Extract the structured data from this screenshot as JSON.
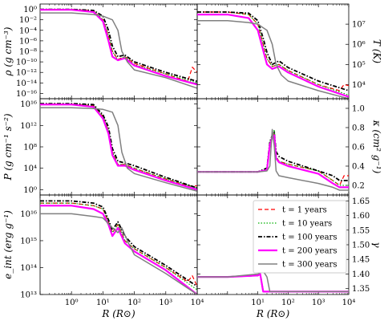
{
  "chart_data": [
    {
      "type": "line",
      "panel": "top-left",
      "ylabel": "ρ (g cm⁻³)",
      "yscale": "log",
      "xscale": "log",
      "xlim": [
        0.1,
        10000
      ],
      "ylim": [
        1e-17,
        10
      ],
      "yticks": [
        "10⁰",
        "10⁻²",
        "10⁻⁴",
        "10⁻⁶",
        "10⁻⁸",
        "10⁻¹⁰",
        "10⁻¹²",
        "10⁻¹⁴",
        "10⁻¹⁶"
      ],
      "series": [
        {
          "name": "t = 1 years",
          "x": [
            0.1,
            1,
            5,
            10,
            15,
            20,
            30,
            50,
            100,
            1000,
            5000,
            7000,
            10000
          ],
          "y": [
            1,
            1,
            0.5,
            0.01,
            1e-05,
            1e-08,
            3e-10,
            1e-09,
            5e-11,
            5e-13,
            2e-14,
            1e-11,
            1e-12
          ]
        },
        {
          "name": "t = 10 years",
          "x": [
            0.1,
            1,
            5,
            10,
            15,
            20,
            30,
            50,
            100,
            1000,
            10000
          ],
          "y": [
            1,
            1,
            0.5,
            0.01,
            1e-05,
            1e-08,
            2e-10,
            1e-09,
            3e-11,
            5e-13,
            1e-14
          ]
        },
        {
          "name": "t = 100 years",
          "x": [
            0.1,
            1,
            5,
            10,
            15,
            20,
            30,
            50,
            100,
            1000,
            10000
          ],
          "y": [
            1,
            1,
            0.6,
            0.05,
            0.0001,
            1e-07,
            1e-09,
            2e-09,
            1e-10,
            1e-12,
            2e-14
          ]
        },
        {
          "name": "t = 200 years",
          "x": [
            0.1,
            1,
            5,
            10,
            15,
            20,
            30,
            50,
            100,
            1000,
            10000
          ],
          "y": [
            0.8,
            0.8,
            0.3,
            0.005,
            1e-06,
            1e-09,
            2e-10,
            5e-10,
            2e-11,
            2e-13,
            5e-15
          ]
        },
        {
          "name": "t = 300 years",
          "x": [
            0.1,
            1,
            5,
            10,
            20,
            30,
            40,
            60,
            100,
            1000,
            10000
          ],
          "y": [
            0.2,
            0.2,
            0.1,
            0.05,
            0.01,
            0.0001,
            1e-08,
            1e-10,
            3e-12,
            1e-13,
            1e-15
          ]
        }
      ]
    },
    {
      "type": "line",
      "panel": "top-right",
      "ylabel": "T (K)",
      "yscale": "log",
      "xscale": "log",
      "xlim": [
        0.1,
        10000
      ],
      "ylim": [
        2000,
        100000000
      ],
      "yticks": [
        "10⁷",
        "10⁶",
        "10⁵",
        "10⁴"
      ],
      "series": [
        {
          "name": "t = 1 years",
          "x": [
            0.1,
            1,
            5,
            10,
            15,
            20,
            30,
            50,
            100,
            1000,
            5000,
            7000,
            10000
          ],
          "y": [
            40000000.0,
            40000000.0,
            30000000.0,
            10000000.0,
            1000000.0,
            200000.0,
            80000.0,
            100000.0,
            50000.0,
            10000.0,
            5000,
            10000.0,
            9000
          ]
        },
        {
          "name": "t = 10 years",
          "x": [
            0.1,
            1,
            5,
            10,
            15,
            20,
            30,
            50,
            100,
            1000,
            10000
          ],
          "y": [
            40000000.0,
            40000000.0,
            30000000.0,
            10000000.0,
            1000000.0,
            200000.0,
            80000.0,
            100000.0,
            50000.0,
            10000.0,
            3000
          ]
        },
        {
          "name": "t = 100 years",
          "x": [
            0.1,
            1,
            5,
            10,
            15,
            20,
            30,
            50,
            100,
            1000,
            10000
          ],
          "y": [
            40000000.0,
            40000000.0,
            35000000.0,
            15000000.0,
            2000000.0,
            400000.0,
            100000.0,
            150000.0,
            70000.0,
            15000.0,
            5000
          ]
        },
        {
          "name": "t = 200 years",
          "x": [
            0.1,
            1,
            5,
            10,
            15,
            20,
            30,
            50,
            100,
            1000,
            10000
          ],
          "y": [
            30000000.0,
            30000000.0,
            20000000.0,
            5000000.0,
            500000.0,
            100000.0,
            60000.0,
            80000.0,
            40000.0,
            8000,
            2500
          ]
        },
        {
          "name": "t = 300 years",
          "x": [
            0.1,
            1,
            5,
            10,
            20,
            30,
            40,
            60,
            100,
            1000,
            10000
          ],
          "y": [
            15000000.0,
            15000000.0,
            12000000.0,
            10000000.0,
            5000000.0,
            1000000.0,
            100000.0,
            30000.0,
            15000.0,
            5000,
            2000
          ]
        }
      ]
    },
    {
      "type": "line",
      "panel": "middle-left",
      "ylabel": "P (g cm⁻¹ s⁻²)",
      "yscale": "log",
      "xscale": "log",
      "xlim": [
        0.1,
        10000
      ],
      "ylim": [
        0.1,
        1e+17
      ],
      "yticks": [
        "10¹⁶",
        "10¹²",
        "10⁸",
        "10⁴",
        "10⁰"
      ],
      "series": [
        {
          "name": "t = 1 years",
          "x": [
            0.1,
            1,
            5,
            10,
            15,
            20,
            30,
            50,
            100,
            1000,
            5000,
            7000,
            10000
          ],
          "y": [
            1e+16,
            1e+16,
            5000000000000000.0,
            50000000000000.0,
            100000000000.0,
            10000000.0,
            50000.0,
            50000.0,
            10000.0,
            100,
            5,
            5,
            5
          ]
        },
        {
          "name": "t = 10 years",
          "x": [
            0.1,
            1,
            5,
            10,
            15,
            20,
            30,
            50,
            100,
            1000,
            10000
          ],
          "y": [
            1e+16,
            1e+16,
            5000000000000000.0,
            50000000000000.0,
            100000000000.0,
            10000000.0,
            50000.0,
            50000.0,
            10000.0,
            100,
            2
          ]
        },
        {
          "name": "t = 100 years",
          "x": [
            0.1,
            1,
            5,
            10,
            15,
            20,
            30,
            50,
            100,
            1000,
            10000
          ],
          "y": [
            1.2e+16,
            1.2e+16,
            8000000000000000.0,
            100000000000000.0,
            500000000000.0,
            50000000.0,
            200000.0,
            100000.0,
            30000.0,
            200,
            2
          ]
        },
        {
          "name": "t = 200 years",
          "x": [
            0.1,
            1,
            5,
            10,
            15,
            20,
            30,
            50,
            100,
            1000,
            10000
          ],
          "y": [
            8000000000000000.0,
            8000000000000000.0,
            3000000000000000.0,
            20000000000000.0,
            30000000000.0,
            3000000.0,
            30000.0,
            30000.0,
            5000,
            50,
            1
          ]
        },
        {
          "name": "t = 300 years",
          "x": [
            0.1,
            1,
            5,
            10,
            20,
            30,
            40,
            60,
            100,
            1000,
            10000
          ],
          "y": [
            2000000000000000.0,
            2000000000000000.0,
            1500000000000000.0,
            1000000000000000.0,
            300000000000000.0,
            1000000000000.0,
            10000000.0,
            10000.0,
            1000,
            20,
            0.5
          ]
        }
      ]
    },
    {
      "type": "line",
      "panel": "middle-right",
      "ylabel": "κ (cm² g⁻¹)",
      "yscale": "linear",
      "xscale": "log",
      "xlim": [
        0.1,
        10000
      ],
      "ylim": [
        0.1,
        1.1
      ],
      "yticks": [
        "1.0",
        "0.8",
        "0.6",
        "0.4",
        "0.2"
      ],
      "series": [
        {
          "name": "t = 1 years",
          "x": [
            0.1,
            1,
            10,
            20,
            25,
            30,
            35,
            40,
            50,
            100,
            1000,
            3000,
            5000,
            7000,
            10000
          ],
          "y": [
            0.34,
            0.34,
            0.34,
            0.36,
            0.6,
            0.7,
            0.75,
            0.5,
            0.45,
            0.42,
            0.35,
            0.25,
            0.2,
            0.3,
            0.3
          ]
        },
        {
          "name": "t = 10 years",
          "x": [
            0.1,
            1,
            10,
            20,
            25,
            30,
            35,
            40,
            50,
            100,
            1000,
            3000,
            5000,
            10000
          ],
          "y": [
            0.34,
            0.34,
            0.34,
            0.36,
            0.65,
            0.7,
            0.78,
            0.5,
            0.45,
            0.42,
            0.35,
            0.25,
            0.2,
            0.2
          ]
        },
        {
          "name": "t = 100 years",
          "x": [
            0.1,
            1,
            10,
            20,
            25,
            30,
            35,
            40,
            50,
            100,
            1000,
            3000,
            5000,
            10000
          ],
          "y": [
            0.34,
            0.34,
            0.34,
            0.38,
            0.65,
            0.72,
            0.75,
            0.55,
            0.5,
            0.45,
            0.35,
            0.3,
            0.25,
            0.25
          ]
        },
        {
          "name": "t = 200 years",
          "x": [
            0.1,
            1,
            10,
            20,
            25,
            30,
            35,
            40,
            50,
            100,
            1000,
            3000,
            5000,
            10000
          ],
          "y": [
            0.34,
            0.34,
            0.34,
            0.36,
            0.62,
            0.7,
            0.72,
            0.48,
            0.44,
            0.4,
            0.32,
            0.22,
            0.18,
            0.18
          ]
        },
        {
          "name": "t = 300 years",
          "x": [
            0.1,
            1,
            10,
            20,
            25,
            30,
            35,
            40,
            50,
            100,
            1000,
            3000,
            5000,
            10000
          ],
          "y": [
            0.34,
            0.34,
            0.34,
            0.35,
            0.4,
            0.78,
            0.6,
            0.35,
            0.3,
            0.28,
            0.22,
            0.18,
            0.15,
            0.15
          ]
        }
      ]
    },
    {
      "type": "line",
      "panel": "bottom-left",
      "ylabel": "e_int (erg g⁻¹)",
      "xlabel": "R (R⊙)",
      "yscale": "log",
      "xscale": "log",
      "xlim": [
        0.1,
        10000
      ],
      "ylim": [
        10000000000000.0,
        5e+16
      ],
      "yticks": [
        "10¹⁶",
        "10¹⁵",
        "10¹⁴",
        "10¹³"
      ],
      "xticks": [
        "10⁰",
        "10¹",
        "10²",
        "10³",
        "10⁴"
      ],
      "series": [
        {
          "name": "t = 1 years",
          "x": [
            0.1,
            1,
            5,
            10,
            15,
            20,
            30,
            50,
            100,
            1000,
            5000,
            7000,
            10000
          ],
          "y": [
            2.5e+16,
            2.5e+16,
            2e+16,
            1.5e+16,
            5000000000000000.0,
            2000000000000000.0,
            4000000000000000.0,
            1000000000000000.0,
            500000000000000.0,
            100000000000000.0,
            30000000000000.0,
            50000000000000.0,
            20000000000000.0
          ]
        },
        {
          "name": "t = 10 years",
          "x": [
            0.1,
            1,
            5,
            10,
            15,
            20,
            30,
            50,
            100,
            1000,
            10000
          ],
          "y": [
            2.5e+16,
            2.5e+16,
            2e+16,
            1.5e+16,
            5000000000000000.0,
            2000000000000000.0,
            4000000000000000.0,
            1000000000000000.0,
            500000000000000.0,
            100000000000000.0,
            15000000000000.0
          ]
        },
        {
          "name": "t = 100 years",
          "x": [
            0.1,
            1,
            5,
            10,
            15,
            20,
            30,
            50,
            100,
            1000,
            10000
          ],
          "y": [
            3e+16,
            3e+16,
            2.5e+16,
            1.8e+16,
            6000000000000000.0,
            2500000000000000.0,
            5000000000000000.0,
            1500000000000000.0,
            600000000000000.0,
            120000000000000.0,
            20000000000000.0
          ]
        },
        {
          "name": "t = 200 years",
          "x": [
            0.1,
            1,
            5,
            10,
            15,
            20,
            30,
            50,
            100,
            1000,
            10000
          ],
          "y": [
            2e+16,
            2e+16,
            1.5e+16,
            1e+16,
            4000000000000000.0,
            1500000000000000.0,
            3000000000000000.0,
            800000000000000.0,
            400000000000000.0,
            80000000000000.0,
            10000000000000.0
          ]
        },
        {
          "name": "t = 300 years",
          "x": [
            0.1,
            1,
            5,
            10,
            20,
            30,
            40,
            60,
            100,
            1000,
            10000
          ],
          "y": [
            1e+16,
            1e+16,
            8000000000000000.0,
            7000000000000000.0,
            3000000000000000.0,
            2000000000000000.0,
            3000000000000000.0,
            1000000000000000.0,
            300000000000000.0,
            60000000000000.0,
            10000000000000.0
          ]
        }
      ]
    },
    {
      "type": "line",
      "panel": "bottom-right",
      "ylabel": "γ",
      "xlabel": "R (R⊙)",
      "yscale": "linear",
      "xscale": "log",
      "xlim": [
        0.1,
        10000
      ],
      "ylim": [
        1.33,
        1.67
      ],
      "yticks": [
        "1.65",
        "1.60",
        "1.55",
        "1.50",
        "1.45",
        "1.40",
        "1.35"
      ],
      "xticks": [
        "10¹",
        "10²",
        "10³",
        "10⁴"
      ],
      "series": [
        {
          "name": "t = 1 years",
          "x": [
            0.1,
            1,
            10,
            12,
            15,
            10000
          ],
          "y": [
            1.39,
            1.39,
            1.395,
            1.4,
            1.34,
            1.34
          ]
        },
        {
          "name": "t = 10 years",
          "x": [
            0.1,
            1,
            10,
            12,
            15,
            10000
          ],
          "y": [
            1.39,
            1.39,
            1.395,
            1.4,
            1.34,
            1.34
          ]
        },
        {
          "name": "t = 100 years",
          "x": [
            0.1,
            1,
            10,
            12,
            15,
            10000
          ],
          "y": [
            1.39,
            1.39,
            1.395,
            1.4,
            1.34,
            1.34
          ]
        },
        {
          "name": "t = 200 years",
          "x": [
            0.1,
            1,
            10,
            12,
            15,
            10000
          ],
          "y": [
            1.39,
            1.39,
            1.395,
            1.4,
            1.34,
            1.34
          ]
        },
        {
          "name": "t = 300 years",
          "x": [
            0.1,
            1,
            10,
            15,
            20,
            25,
            10000
          ],
          "y": [
            1.39,
            1.39,
            1.4,
            1.41,
            1.39,
            1.34,
            1.34
          ]
        }
      ]
    }
  ],
  "legend": {
    "placement": "bottom-right panel, top",
    "entries": [
      "t = 1 years",
      "t = 10 years",
      "t = 100 years",
      "t = 200 years",
      "t = 300 years"
    ]
  },
  "styles": {
    "t = 1 years": {
      "color": "#ff0000",
      "dash": "5,3",
      "width": 1.2
    },
    "t = 10 years": {
      "color": "#00b000",
      "dash": "1.5,2",
      "width": 1.2
    },
    "t = 100 years": {
      "color": "#000000",
      "dash": "5,2,1.5,2",
      "width": 1.8
    },
    "t = 200 years": {
      "color": "#ff00ff",
      "dash": "",
      "width": 2.2
    },
    "t = 300 years": {
      "color": "#808080",
      "dash": "",
      "width": 1.5
    }
  }
}
